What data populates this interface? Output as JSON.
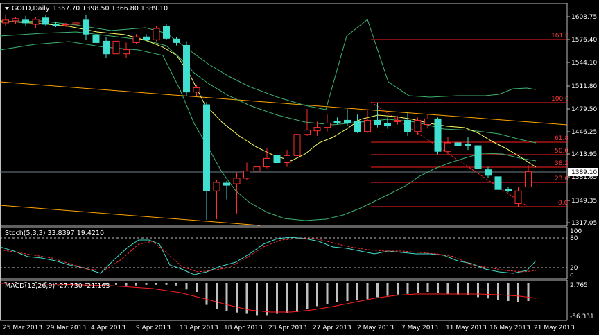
{
  "main_header": {
    "symbol": "GOLD,Daily",
    "ohlc": "1367.70 1398.50 1366.80 1389.10"
  },
  "price_axis": [
    "1608.75",
    "1576.40",
    "1544.10",
    "1511.80",
    "1479.50",
    "1446.25",
    "1413.95",
    "1381.65",
    "1349.35",
    "1317.05"
  ],
  "current_price": "1389.10",
  "fib_levels": [
    {
      "label": "161.8"
    },
    {
      "label": "100.0"
    },
    {
      "label": "61.8"
    },
    {
      "label": "50.0"
    },
    {
      "label": "38.2"
    },
    {
      "label": "23.6"
    },
    {
      "label": "0.0"
    }
  ],
  "stoch": {
    "label": "Stoch(5,3,3) 33.8397 19.4210",
    "axis": [
      "100",
      "80",
      "20",
      "0"
    ]
  },
  "macd": {
    "label": "MACD(12,26,9) -27.730 -21.163",
    "axis": [
      "2.765",
      "-56.331"
    ]
  },
  "date_axis": [
    "25 Mar 2013",
    "29 Mar 2013",
    "4 Apr 2013",
    "9 Apr 2013",
    "13 Apr 2013",
    "18 Apr 2013",
    "23 Apr 2013",
    "27 Apr 2013",
    "2 May 2013",
    "7 May 2013",
    "11 May 2013",
    "16 May 2013",
    "21 May 2013"
  ],
  "colors": {
    "background": "#000000",
    "bull_candle": "#000000",
    "bear_candle": "#40e0d0",
    "bull_outline": "#ff3030",
    "bear_outline": "#40e0d0",
    "ma": "#ffff60",
    "bands": "#3cb371",
    "trend": "#ffa500",
    "fib": "#ff2020",
    "stoch_main": "#40e0d0",
    "stoch_signal": "#ff3030",
    "macd_hist": "#c0c0c0",
    "macd_signal": "#ff2020",
    "grid": "#c0c0c0"
  },
  "chart_data": {
    "type": "candlestick",
    "ohlc": [
      {
        "o": 1600,
        "h": 1612,
        "l": 1596,
        "c": 1604
      },
      {
        "o": 1603,
        "h": 1608,
        "l": 1598,
        "c": 1606
      },
      {
        "o": 1604,
        "h": 1610,
        "l": 1596,
        "c": 1600
      },
      {
        "o": 1598,
        "h": 1608,
        "l": 1592,
        "c": 1605
      },
      {
        "o": 1607,
        "h": 1612,
        "l": 1596,
        "c": 1598
      },
      {
        "o": 1598,
        "h": 1602,
        "l": 1594,
        "c": 1596
      },
      {
        "o": 1597,
        "h": 1600,
        "l": 1594,
        "c": 1598
      },
      {
        "o": 1598,
        "h": 1603,
        "l": 1596,
        "c": 1600
      },
      {
        "o": 1604,
        "h": 1612,
        "l": 1576,
        "c": 1584
      },
      {
        "o": 1582,
        "h": 1592,
        "l": 1568,
        "c": 1572
      },
      {
        "o": 1574,
        "h": 1580,
        "l": 1550,
        "c": 1556
      },
      {
        "o": 1556,
        "h": 1578,
        "l": 1552,
        "c": 1574
      },
      {
        "o": 1556,
        "h": 1572,
        "l": 1550,
        "c": 1562
      },
      {
        "o": 1572,
        "h": 1584,
        "l": 1570,
        "c": 1580
      },
      {
        "o": 1580,
        "h": 1584,
        "l": 1574,
        "c": 1576
      },
      {
        "o": 1576,
        "h": 1596,
        "l": 1574,
        "c": 1592
      },
      {
        "o": 1595,
        "h": 1598,
        "l": 1576,
        "c": 1578
      },
      {
        "o": 1577,
        "h": 1580,
        "l": 1568,
        "c": 1572
      },
      {
        "o": 1568,
        "h": 1574,
        "l": 1496,
        "c": 1502
      },
      {
        "o": 1502,
        "h": 1512,
        "l": 1496,
        "c": 1508
      },
      {
        "o": 1484,
        "h": 1488,
        "l": 1321,
        "c": 1362
      },
      {
        "o": 1362,
        "h": 1378,
        "l": 1322,
        "c": 1374
      },
      {
        "o": 1373,
        "h": 1376,
        "l": 1350,
        "c": 1370
      },
      {
        "o": 1372,
        "h": 1388,
        "l": 1330,
        "c": 1380
      },
      {
        "o": 1380,
        "h": 1402,
        "l": 1378,
        "c": 1390
      },
      {
        "o": 1390,
        "h": 1400,
        "l": 1386,
        "c": 1396
      },
      {
        "o": 1396,
        "h": 1422,
        "l": 1394,
        "c": 1408
      },
      {
        "o": 1412,
        "h": 1420,
        "l": 1394,
        "c": 1402
      },
      {
        "o": 1402,
        "h": 1420,
        "l": 1396,
        "c": 1412
      },
      {
        "o": 1412,
        "h": 1446,
        "l": 1408,
        "c": 1442
      },
      {
        "o": 1442,
        "h": 1478,
        "l": 1440,
        "c": 1448
      },
      {
        "o": 1447,
        "h": 1460,
        "l": 1440,
        "c": 1452
      },
      {
        "o": 1452,
        "h": 1470,
        "l": 1446,
        "c": 1458
      },
      {
        "o": 1460,
        "h": 1466,
        "l": 1456,
        "c": 1458
      },
      {
        "o": 1462,
        "h": 1478,
        "l": 1454,
        "c": 1458
      },
      {
        "o": 1460,
        "h": 1470,
        "l": 1444,
        "c": 1446
      },
      {
        "o": 1446,
        "h": 1476,
        "l": 1444,
        "c": 1462
      },
      {
        "o": 1462,
        "h": 1486,
        "l": 1452,
        "c": 1456
      },
      {
        "o": 1458,
        "h": 1466,
        "l": 1450,
        "c": 1454
      },
      {
        "o": 1460,
        "h": 1468,
        "l": 1456,
        "c": 1462
      },
      {
        "o": 1462,
        "h": 1474,
        "l": 1440,
        "c": 1446
      },
      {
        "o": 1446,
        "h": 1466,
        "l": 1442,
        "c": 1462
      },
      {
        "o": 1456,
        "h": 1470,
        "l": 1450,
        "c": 1464
      },
      {
        "o": 1464,
        "h": 1466,
        "l": 1414,
        "c": 1418
      },
      {
        "o": 1418,
        "h": 1438,
        "l": 1414,
        "c": 1430
      },
      {
        "o": 1430,
        "h": 1436,
        "l": 1424,
        "c": 1426
      },
      {
        "o": 1428,
        "h": 1438,
        "l": 1420,
        "c": 1426
      },
      {
        "o": 1426,
        "h": 1428,
        "l": 1392,
        "c": 1394
      },
      {
        "o": 1392,
        "h": 1396,
        "l": 1380,
        "c": 1384
      },
      {
        "o": 1382,
        "h": 1386,
        "l": 1360,
        "c": 1364
      },
      {
        "o": 1364,
        "h": 1368,
        "l": 1360,
        "c": 1362
      },
      {
        "o": 1344,
        "h": 1368,
        "l": 1340,
        "c": 1362
      },
      {
        "o": 1367.7,
        "h": 1398.5,
        "l": 1366.8,
        "c": 1389.1
      }
    ]
  }
}
